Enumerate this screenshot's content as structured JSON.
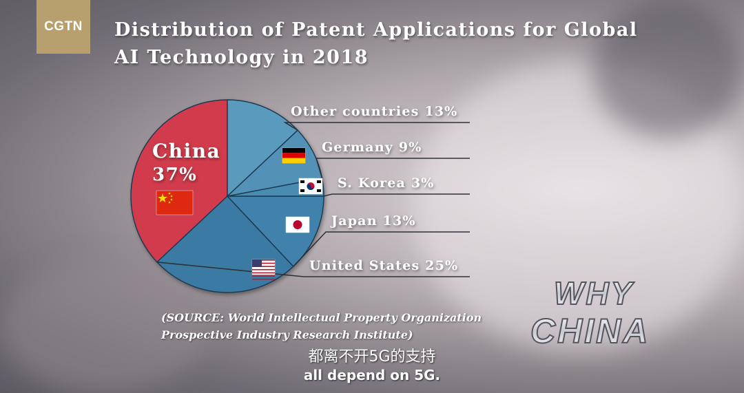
{
  "logo": {
    "text": "CGTN"
  },
  "title": "Distribution of Patent Applications for Global AI Technology in 2018",
  "chart_data": {
    "type": "pie",
    "title": "Distribution of Patent Applications for Global AI Technology in 2018",
    "slices": [
      {
        "label": "China",
        "display": "China 37%",
        "value": 37,
        "color": "#d13b4c",
        "flag": "china-flag-icon"
      },
      {
        "label": "United States",
        "display": "United States 25%",
        "value": 25,
        "color": "#3b7aa2",
        "flag": "usa-flag-icon"
      },
      {
        "label": "Japan",
        "display": "Japan 13%",
        "value": 13,
        "color": "#3f82ab",
        "flag": "japan-flag-icon"
      },
      {
        "label": "S. Korea",
        "display": "S. Korea 3%",
        "value": 3,
        "color": "#4a8cb2",
        "flag": "south-korea-flag-icon"
      },
      {
        "label": "Germany",
        "display": "Germany 9%",
        "value": 9,
        "color": "#5292b6",
        "flag": "germany-flag-icon"
      },
      {
        "label": "Other countries",
        "display": "Other countries 13%",
        "value": 13,
        "color": "#5a9bbd",
        "flag": ""
      }
    ],
    "china_label": {
      "name": "China",
      "percent": "37%"
    }
  },
  "source": {
    "line1": "(SOURCE: World Intellectual Property Organization",
    "line2": "Prospective Industry Research Institute)"
  },
  "subtitle": {
    "zh": "都离不开5G的支持",
    "en": "all depend on 5G."
  },
  "watermark": {
    "line1": "WHY",
    "line2": "CHINA"
  }
}
